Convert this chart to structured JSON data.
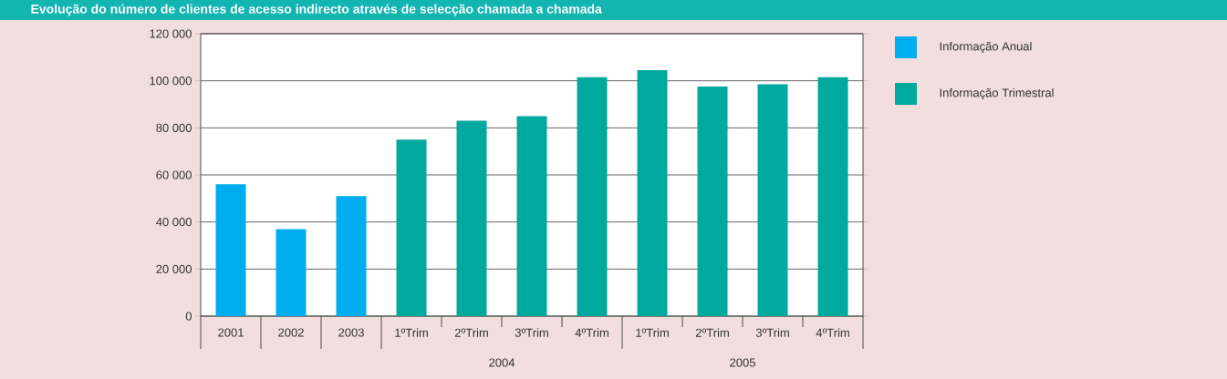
{
  "chart_data": {
    "type": "bar",
    "title": "Evolução do número de clientes de acesso indirecto através de selecção chamada a chamada",
    "categories": [
      "2001",
      "2002",
      "2003",
      "1ºTrim",
      "2ºTrim",
      "3ºTrim",
      "4ºTrim",
      "1ºTrim",
      "2ºTrim",
      "3ºTrim",
      "4ºTrim"
    ],
    "series": [
      {
        "name": "Informação Anual",
        "color": "#00aeef",
        "values": [
          56000,
          37000,
          51000,
          null,
          null,
          null,
          null,
          null,
          null,
          null,
          null
        ]
      },
      {
        "name": "Informação Trimestral",
        "color": "#00a99d",
        "values": [
          null,
          null,
          null,
          75000,
          83000,
          85000,
          101500,
          104500,
          97500,
          98500,
          101500
        ]
      }
    ],
    "ylim": [
      0,
      120000
    ],
    "yticks": [
      0,
      {
        "value": 20000,
        "label": "20 000"
      },
      {
        "value": 40000,
        "label": "40 000"
      },
      {
        "value": 60000,
        "label": "60 000"
      },
      {
        "value": 80000,
        "label": "80 000"
      },
      {
        "value": 100000,
        "label": "100 000"
      },
      {
        "value": 120000,
        "label": "120 000"
      }
    ],
    "grid": "y",
    "legend": "right",
    "annotations": [
      "2004",
      "2005"
    ]
  }
}
